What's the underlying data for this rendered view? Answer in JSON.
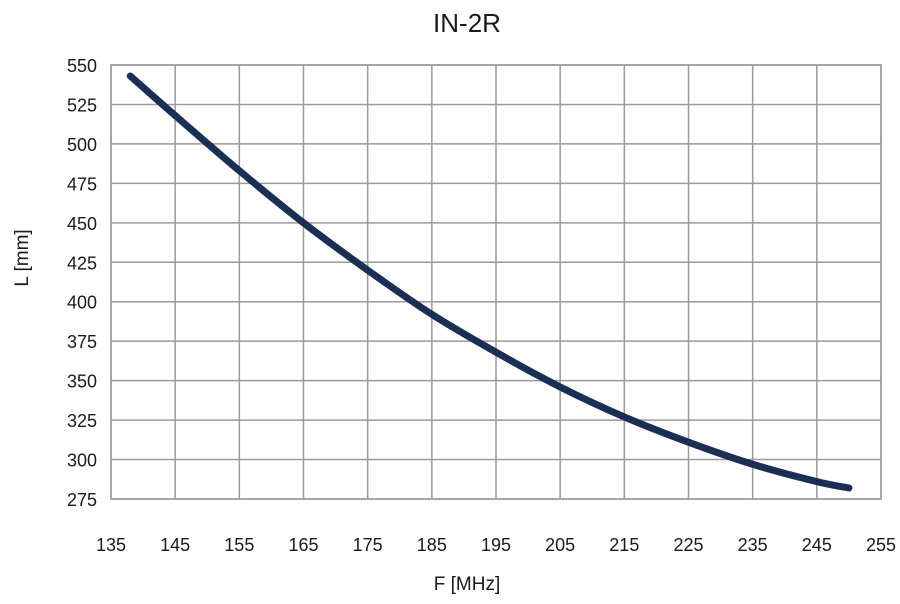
{
  "chart_data": {
    "type": "line",
    "title": "IN-2R",
    "xlabel": "F [MHz]",
    "ylabel": "L [mm]",
    "xlim": [
      135,
      255
    ],
    "ylim": [
      275,
      550
    ],
    "xticks": [
      "135",
      "145",
      "155",
      "165",
      "175",
      "185",
      "195",
      "205",
      "215",
      "225",
      "235",
      "245",
      "255"
    ],
    "yticks": [
      "275",
      "300",
      "325",
      "350",
      "375",
      "400",
      "425",
      "450",
      "475",
      "500",
      "525",
      "550"
    ],
    "grid": true,
    "legend": "none",
    "series": [
      {
        "color": "#1b2f55",
        "x": [
          138,
          145,
          155,
          165,
          175,
          185,
          195,
          205,
          215,
          225,
          235,
          245,
          250
        ],
        "y": [
          543,
          518,
          483,
          450,
          420,
          392,
          368,
          346,
          327,
          311,
          297,
          286,
          282
        ]
      }
    ]
  }
}
